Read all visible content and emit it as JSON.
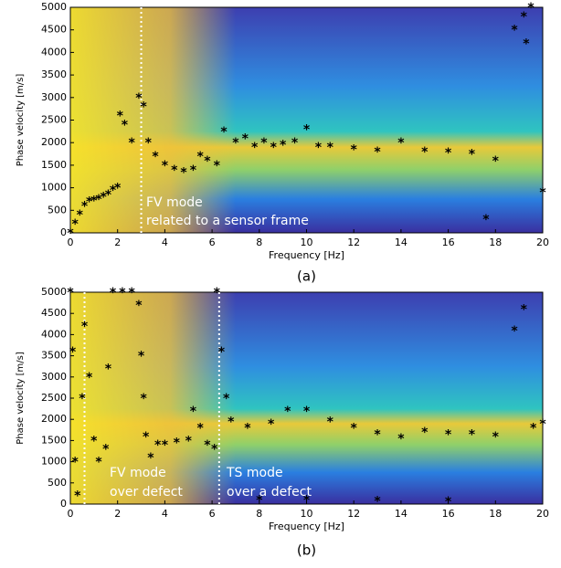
{
  "chart_data": [
    {
      "type": "scatter",
      "panel_label": "(a)",
      "x_label": "Frequency [Hz]",
      "y_label": "Phase velocity [m/s]",
      "annotations": [
        "FV mode",
        "related to a sensor frame"
      ],
      "xlim": [
        0,
        20
      ],
      "xticks": [
        0,
        2,
        4,
        6,
        8,
        10,
        12,
        14,
        16,
        18,
        20
      ],
      "ylim": [
        0,
        5000
      ],
      "yticks": [
        0,
        500,
        1000,
        1500,
        2000,
        2500,
        3000,
        3500,
        4000,
        4500,
        5000
      ],
      "vlines": [
        3
      ],
      "color": "#000000",
      "x": [
        0,
        0.2,
        0.4,
        0.6,
        0.8,
        1.0,
        1.2,
        1.4,
        1.6,
        1.8,
        2.0,
        2.1,
        2.3,
        2.6,
        2.9,
        3.1,
        3.3,
        3.6,
        4.0,
        4.4,
        4.8,
        5.2,
        5.5,
        5.8,
        6.2,
        6.5,
        7.0,
        7.4,
        7.8,
        8.2,
        8.6,
        9.0,
        9.5,
        10.0,
        10.5,
        11,
        12,
        13,
        14,
        15,
        16,
        17,
        17.6,
        18.0,
        18.8,
        19.2,
        19.5,
        19.3,
        20
      ],
      "y": [
        0,
        200,
        400,
        600,
        700,
        720,
        750,
        800,
        850,
        950,
        1000,
        2600,
        2400,
        2000,
        3000,
        2800,
        2000,
        1700,
        1500,
        1400,
        1350,
        1400,
        1700,
        1600,
        1500,
        2250,
        2000,
        2100,
        1900,
        2000,
        1900,
        1950,
        2000,
        2300,
        1900,
        1900,
        1850,
        1800,
        2000,
        1800,
        1780,
        1750,
        300,
        1600,
        4500,
        4800,
        5000,
        4200,
        900
      ]
    },
    {
      "type": "scatter",
      "panel_label": "(b)",
      "x_label": "Frequency [Hz]",
      "y_label": "Phase velocity [m/s]",
      "annotations": [
        "FV mode",
        "over defect",
        "TS mode",
        "over a defect"
      ],
      "xlim": [
        0,
        20
      ],
      "xticks": [
        0,
        2,
        4,
        6,
        8,
        10,
        12,
        14,
        16,
        18,
        20
      ],
      "ylim": [
        0,
        5000
      ],
      "yticks": [
        0,
        500,
        1000,
        1500,
        2000,
        2500,
        3000,
        3500,
        4000,
        4500,
        5000
      ],
      "vlines": [
        0.6,
        6.3
      ],
      "color": "#000000",
      "x": [
        0,
        0.1,
        0.2,
        0.3,
        0.5,
        0.6,
        0.8,
        1.0,
        1.2,
        1.5,
        1.6,
        1.8,
        2.2,
        2.6,
        2.9,
        3.0,
        3.1,
        3.2,
        3.4,
        3.7,
        4.0,
        4.5,
        5.0,
        5.2,
        5.5,
        5.8,
        6.1,
        6.2,
        6.4,
        6.6,
        6.8,
        7.5,
        8.5,
        9.2,
        10,
        11,
        12,
        13,
        14,
        15,
        16,
        17,
        18,
        18.8,
        19.2,
        19.6,
        20,
        8,
        10,
        13,
        16
      ],
      "y": [
        5000,
        3600,
        1000,
        200,
        2500,
        4200,
        3000,
        1500,
        1000,
        1300,
        3200,
        5000,
        5000,
        5000,
        4700,
        3500,
        2500,
        1600,
        1100,
        1400,
        1400,
        1450,
        1500,
        2200,
        1800,
        1400,
        1300,
        5000,
        3600,
        2500,
        1950,
        1800,
        1900,
        2200,
        2200,
        1950,
        1800,
        1650,
        1550,
        1700,
        1650,
        1650,
        1600,
        4100,
        4600,
        1800,
        1900,
        100,
        100,
        80,
        60
      ]
    }
  ]
}
